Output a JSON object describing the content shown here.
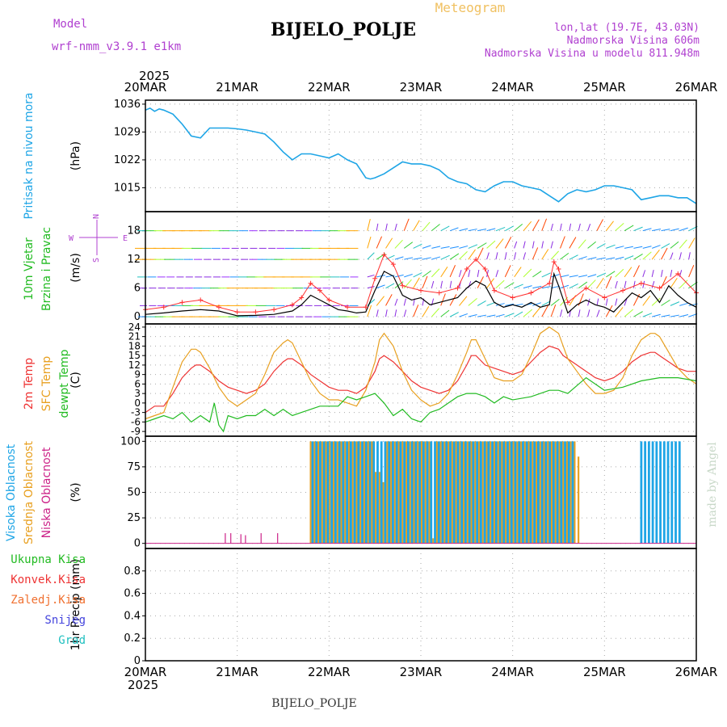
{
  "header": {
    "app_title": "Meteogram",
    "station": "BIJELO_POLJE",
    "model_label": "Model",
    "model_name": "wrf-nmm_v3.9.1 e1km",
    "lonlat": "lon,lat (19.7E, 43.03N)",
    "elevation": "Nadmorska Visina 606m",
    "model_elevation": "Nadmorska Visina u modelu 811.948m",
    "year_top": "2025",
    "year_bottom": "2025",
    "footer_station": "BIJELO_POLJE",
    "credit": "made by Angel"
  },
  "colors": {
    "pressure": "#1ea5e6",
    "wind_speed": "#000000",
    "gust": "#ff3030",
    "t2m": "#ee3333",
    "sfc": "#e8a020",
    "dewpt": "#22bb22",
    "cloud_high": "#1ea5e6",
    "cloud_mid": "#e8a020",
    "cloud_low": "#cc2288",
    "label_purple": "#b040d0",
    "label_orange": "#f0c060"
  },
  "chart_data": [
    {
      "id": "pressure",
      "type": "line",
      "ylabel_left": "Pritisak na nivou mora",
      "unit": "(hPa)",
      "ylim": [
        1009,
        1037
      ],
      "yticks": [
        1015,
        1022,
        1029,
        1036
      ],
      "x_ticks": [
        "20MAR",
        "21MAR",
        "22MAR",
        "23MAR",
        "24MAR",
        "25MAR",
        "26MAR"
      ],
      "grid": true,
      "series": [
        {
          "x": [
            0,
            0.05,
            0.1,
            0.15,
            0.2,
            0.3,
            0.4,
            0.45,
            0.5,
            0.6,
            0.7,
            0.8,
            0.9,
            1.0,
            1.1,
            1.2,
            1.3,
            1.4,
            1.5,
            1.6,
            1.7,
            1.8,
            1.9,
            2.0,
            2.1,
            2.2,
            2.3,
            2.4,
            2.45,
            2.5,
            2.6,
            2.7,
            2.8,
            2.9,
            3.0,
            3.1,
            3.2,
            3.3,
            3.4,
            3.5,
            3.6,
            3.7,
            3.8,
            3.9,
            4.0,
            4.1,
            4.2,
            4.3,
            4.4,
            4.5,
            4.6,
            4.7,
            4.8,
            4.9,
            5.0,
            5.1,
            5.2,
            5.3,
            5.4,
            5.5,
            5.6,
            5.7,
            5.8,
            5.9,
            6.0
          ],
          "values": [
            1034.5,
            1035,
            1034.2,
            1034.8,
            1034.5,
            1033.5,
            1031,
            1029.5,
            1028,
            1027.5,
            1030,
            1030,
            1030,
            1029.8,
            1029.5,
            1029,
            1028.5,
            1026.5,
            1024,
            1022,
            1023.5,
            1023.5,
            1023,
            1022.5,
            1023.5,
            1022,
            1021,
            1017.5,
            1017.2,
            1017.5,
            1018.5,
            1020,
            1021.5,
            1021,
            1021,
            1020.5,
            1019.5,
            1017.5,
            1016.5,
            1016,
            1014.5,
            1014,
            1015.5,
            1016.5,
            1016.5,
            1015.5,
            1015,
            1014.5,
            1013,
            1011.5,
            1013.5,
            1014.5,
            1014,
            1014.5,
            1015.5,
            1015.5,
            1015,
            1014.5,
            1012,
            1012.5,
            1013,
            1013,
            1012.5,
            1012.5,
            1011
          ]
        }
      ]
    },
    {
      "id": "wind",
      "type": "line",
      "ylabel_left": "10m Vjetar",
      "ylabel_left2": "Brzina i Pravac",
      "unit": "(m/s)",
      "compass": {
        "n": "N",
        "s": "S",
        "e": "E",
        "w": "W"
      },
      "ylim": [
        -1.5,
        22
      ],
      "yticks": [
        0,
        6,
        12,
        18
      ],
      "grid": true,
      "series": [
        {
          "name": "speed",
          "x": [
            0,
            0.2,
            0.4,
            0.6,
            0.8,
            1.0,
            1.2,
            1.4,
            1.6,
            1.7,
            1.8,
            1.9,
            2.0,
            2.1,
            2.2,
            2.3,
            2.4,
            2.5,
            2.6,
            2.7,
            2.8,
            2.9,
            3.0,
            3.1,
            3.2,
            3.3,
            3.4,
            3.5,
            3.6,
            3.7,
            3.8,
            3.9,
            4.0,
            4.1,
            4.2,
            4.3,
            4.4,
            4.45,
            4.5,
            4.6,
            4.7,
            4.8,
            4.9,
            5.0,
            5.1,
            5.2,
            5.3,
            5.4,
            5.5,
            5.6,
            5.7,
            5.8,
            5.9,
            6.0
          ],
          "values": [
            0.5,
            0.8,
            1.2,
            1.5,
            1.2,
            0.2,
            0.3,
            0.5,
            1.2,
            2.5,
            4.5,
            3.5,
            2.5,
            1.5,
            1.2,
            0.8,
            1.0,
            5.5,
            9.5,
            8.5,
            4.5,
            3.5,
            4.0,
            2.5,
            3.0,
            3.5,
            4.0,
            6.0,
            7.5,
            6.5,
            3.0,
            2.0,
            2.5,
            2.0,
            3.0,
            2.0,
            2.5,
            9.0,
            6.5,
            0.8,
            2.5,
            3.5,
            2.5,
            2.0,
            1.0,
            3.0,
            5.0,
            4.0,
            5.5,
            3.0,
            6.5,
            4.5,
            3.0,
            2.0
          ]
        },
        {
          "name": "gust",
          "x": [
            0,
            0.2,
            0.4,
            0.6,
            0.8,
            1.0,
            1.2,
            1.4,
            1.6,
            1.7,
            1.8,
            1.9,
            2.0,
            2.2,
            2.4,
            2.5,
            2.6,
            2.7,
            2.8,
            3.0,
            3.2,
            3.4,
            3.5,
            3.6,
            3.7,
            3.8,
            4.0,
            4.2,
            4.4,
            4.45,
            4.5,
            4.6,
            4.8,
            5.0,
            5.2,
            5.4,
            5.6,
            5.8,
            6.0
          ],
          "values": [
            1.5,
            2.0,
            3.0,
            3.5,
            2.0,
            1.0,
            1.0,
            1.5,
            2.5,
            4.0,
            7.0,
            5.5,
            3.5,
            2.0,
            2.0,
            8.0,
            13.0,
            11.0,
            6.5,
            5.5,
            5.0,
            6.0,
            10.0,
            12.0,
            10.0,
            5.5,
            4.0,
            5.0,
            7.0,
            11.5,
            10.0,
            3.0,
            6.0,
            4.0,
            5.5,
            7.0,
            6.0,
            9.0,
            5.0
          ]
        }
      ]
    },
    {
      "id": "temperature",
      "type": "line",
      "ylabel_left": "2m Temp",
      "ylabel_left2": "SFC Temp",
      "ylabel_left3": "dewpt Temp",
      "unit": "(C)",
      "ylim": [
        -10.5,
        25
      ],
      "yticks": [
        -9,
        -6,
        -3,
        0,
        3,
        6,
        9,
        12,
        15,
        18,
        21,
        24
      ],
      "grid": true,
      "series": [
        {
          "name": "2m",
          "x": [
            0,
            0.1,
            0.2,
            0.3,
            0.4,
            0.5,
            0.55,
            0.6,
            0.7,
            0.8,
            0.9,
            1.0,
            1.1,
            1.2,
            1.3,
            1.4,
            1.5,
            1.55,
            1.6,
            1.7,
            1.8,
            1.9,
            2.0,
            2.1,
            2.2,
            2.3,
            2.4,
            2.5,
            2.55,
            2.6,
            2.7,
            2.8,
            2.9,
            3.0,
            3.1,
            3.2,
            3.3,
            3.4,
            3.5,
            3.55,
            3.6,
            3.7,
            3.8,
            3.9,
            4.0,
            4.1,
            4.2,
            4.3,
            4.4,
            4.5,
            4.55,
            4.6,
            4.7,
            4.8,
            4.9,
            5.0,
            5.1,
            5.2,
            5.3,
            5.4,
            5.5,
            5.55,
            5.6,
            5.7,
            5.8,
            5.9,
            6.0
          ],
          "values": [
            -3,
            -1,
            -1,
            3,
            8,
            11,
            12,
            12,
            10,
            7,
            5,
            4,
            3,
            4,
            6,
            10,
            13,
            14,
            14,
            12,
            9,
            7,
            5,
            4,
            4,
            3,
            5,
            10,
            14,
            15,
            13,
            10,
            7,
            5,
            4,
            3,
            4,
            7,
            12,
            15,
            15,
            12,
            11,
            10,
            9,
            10,
            13,
            16,
            18,
            17,
            15,
            14,
            12,
            10,
            8,
            7,
            8,
            10,
            13,
            15,
            16,
            16,
            15,
            13,
            11,
            10,
            10
          ]
        },
        {
          "name": "sfc",
          "x": [
            0,
            0.1,
            0.2,
            0.3,
            0.4,
            0.5,
            0.55,
            0.6,
            0.7,
            0.8,
            0.9,
            1.0,
            1.1,
            1.2,
            1.3,
            1.4,
            1.5,
            1.55,
            1.6,
            1.7,
            1.8,
            1.9,
            2.0,
            2.1,
            2.2,
            2.3,
            2.4,
            2.5,
            2.55,
            2.6,
            2.7,
            2.8,
            2.9,
            3.0,
            3.1,
            3.2,
            3.3,
            3.4,
            3.5,
            3.55,
            3.6,
            3.7,
            3.8,
            3.9,
            4.0,
            4.1,
            4.2,
            4.3,
            4.4,
            4.5,
            4.55,
            4.6,
            4.7,
            4.8,
            4.9,
            5.0,
            5.1,
            5.2,
            5.3,
            5.4,
            5.5,
            5.55,
            5.6,
            5.7,
            5.8,
            5.9,
            6.0
          ],
          "values": [
            -5,
            -4,
            -3,
            5,
            13,
            17,
            17,
            16,
            11,
            5,
            1,
            -1,
            1,
            3,
            9,
            16,
            19,
            20,
            19,
            13,
            7,
            3,
            1,
            1,
            0,
            -1,
            4,
            13,
            20,
            22,
            18,
            10,
            4,
            1,
            -1,
            0,
            3,
            9,
            16,
            20,
            20,
            14,
            8,
            7,
            7,
            9,
            15,
            22,
            24,
            22,
            18,
            14,
            10,
            6,
            3,
            3,
            4,
            8,
            15,
            20,
            22,
            22,
            21,
            16,
            11,
            8,
            6
          ]
        },
        {
          "name": "dewpt",
          "x": [
            0,
            0.1,
            0.2,
            0.3,
            0.4,
            0.5,
            0.6,
            0.7,
            0.75,
            0.8,
            0.85,
            0.9,
            1.0,
            1.1,
            1.2,
            1.3,
            1.4,
            1.5,
            1.6,
            1.7,
            1.8,
            1.9,
            2.0,
            2.1,
            2.2,
            2.3,
            2.4,
            2.5,
            2.6,
            2.7,
            2.8,
            2.9,
            3.0,
            3.1,
            3.2,
            3.3,
            3.4,
            3.5,
            3.6,
            3.7,
            3.8,
            3.9,
            4.0,
            4.2,
            4.4,
            4.5,
            4.6,
            4.8,
            5.0,
            5.2,
            5.4,
            5.6,
            5.8,
            6.0
          ],
          "values": [
            -6,
            -5,
            -4,
            -5,
            -3,
            -6,
            -4,
            -6,
            0,
            -7,
            -9,
            -4,
            -5,
            -4,
            -4,
            -2,
            -4,
            -2,
            -4,
            -3,
            -2,
            -1,
            -1,
            -1,
            2,
            1,
            2,
            3,
            0,
            -4,
            -2,
            -5,
            -6,
            -3,
            -2,
            0,
            2,
            3,
            3,
            2,
            0,
            2,
            1,
            2,
            4,
            4,
            3,
            8,
            4,
            5,
            7,
            8,
            8,
            7
          ]
        }
      ]
    },
    {
      "id": "cloud",
      "type": "bar",
      "ylabel_left": "Visoka Oblacnost",
      "ylabel_left2": "Srednja Oblacnost",
      "ylabel_left3": "Niska Oblacnost",
      "unit": "(%)",
      "ylim": [
        -5,
        105
      ],
      "yticks": [
        0,
        25,
        50,
        75,
        100
      ],
      "grid": true,
      "low_spikes": {
        "x": [
          0.87,
          0.93,
          1.04,
          1.09,
          1.26,
          1.44
        ],
        "values": [
          10,
          10,
          9,
          8,
          10,
          10
        ]
      },
      "high_cover": [
        {
          "from": 1.8,
          "to": 4.67,
          "value": 100
        },
        {
          "from": 5.38,
          "to": 5.83,
          "value": 100
        }
      ],
      "mid_cover": {
        "from": 1.8,
        "to": 4.72,
        "value": 100
      },
      "mid_dips": {
        "x": [
          2.52,
          2.58,
          3.13,
          4.72
        ],
        "values": [
          70,
          60,
          5,
          85
        ]
      }
    },
    {
      "id": "precip",
      "type": "bar",
      "legend": [
        "Ukupna Kisa",
        "Konvek.Kisa",
        "Zaledj.Kisa",
        "Snijeg",
        "Grad"
      ],
      "legend_colors": [
        "#22bb22",
        "#ee3333",
        "#f07030",
        "#4444dd",
        "#20c0c0"
      ],
      "ylabel_left": "1hr Precip (mm)",
      "ylim": [
        0,
        1.0
      ],
      "yticks": [
        0,
        0.2,
        0.4,
        0.6,
        0.8
      ],
      "values": [],
      "grid": true
    }
  ]
}
